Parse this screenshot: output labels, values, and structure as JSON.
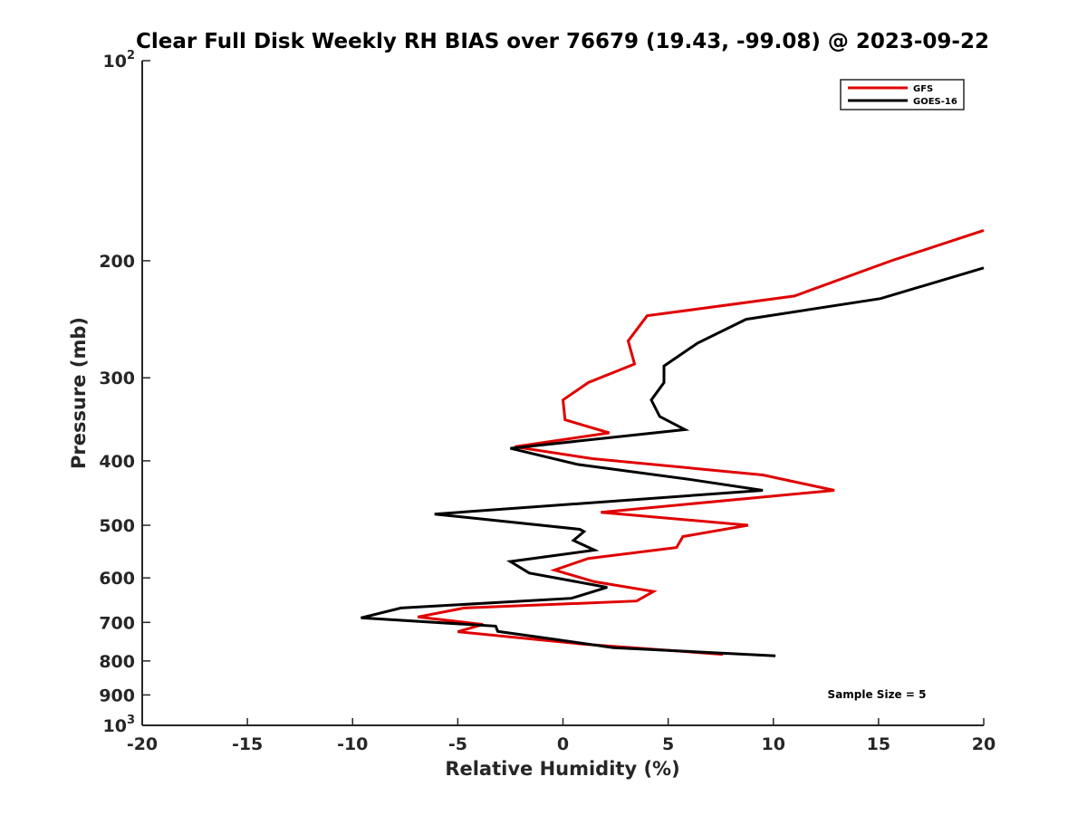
{
  "chart_data": {
    "type": "line",
    "title": "Clear Full Disk Weekly RH BIAS over 76679 (19.43, -99.08) @ 2023-09-22",
    "xlabel": "Relative Humidity (%)",
    "ylabel": "Pressure (mb)",
    "xlim": [
      -20,
      20
    ],
    "ylim": [
      100,
      1000
    ],
    "y_scale": "log",
    "y_reversed": true,
    "x_ticks": [
      {
        "value": -20,
        "label": "-20"
      },
      {
        "value": -15,
        "label": "-15"
      },
      {
        "value": -10,
        "label": "-10"
      },
      {
        "value": -5,
        "label": "-5"
      },
      {
        "value": 0,
        "label": "0"
      },
      {
        "value": 5,
        "label": "5"
      },
      {
        "value": 10,
        "label": "10"
      },
      {
        "value": 15,
        "label": "15"
      },
      {
        "value": 20,
        "label": "20"
      }
    ],
    "y_ticks": [
      {
        "value": 100,
        "base": "10",
        "exp": "2"
      },
      {
        "value": 200,
        "base": "200",
        "exp": ""
      },
      {
        "value": 300,
        "base": "300",
        "exp": ""
      },
      {
        "value": 400,
        "base": "400",
        "exp": ""
      },
      {
        "value": 500,
        "base": "500",
        "exp": ""
      },
      {
        "value": 600,
        "base": "600",
        "exp": ""
      },
      {
        "value": 700,
        "base": "700",
        "exp": ""
      },
      {
        "value": 800,
        "base": "800",
        "exp": ""
      },
      {
        "value": 900,
        "base": "900",
        "exp": ""
      },
      {
        "value": 1000,
        "base": "10",
        "exp": "3"
      }
    ],
    "legend": {
      "placement": "top-right"
    },
    "annotation": "Sample Size = 5",
    "series": [
      {
        "name": "GFS",
        "color": "#e00000",
        "points": [
          {
            "x": 20,
            "p": 180
          },
          {
            "x": 15.6,
            "p": 200
          },
          {
            "x": 11,
            "p": 226
          },
          {
            "x": 4,
            "p": 242
          },
          {
            "x": 3.1,
            "p": 264
          },
          {
            "x": 3.4,
            "p": 286
          },
          {
            "x": 1.2,
            "p": 305
          },
          {
            "x": 0,
            "p": 324
          },
          {
            "x": 0.1,
            "p": 347
          },
          {
            "x": 2.2,
            "p": 363
          },
          {
            "x": -2.3,
            "p": 381
          },
          {
            "x": 1.4,
            "p": 397
          },
          {
            "x": 9.5,
            "p": 420
          },
          {
            "x": 12.9,
            "p": 443
          },
          {
            "x": 1.8,
            "p": 478
          },
          {
            "x": 8.8,
            "p": 500
          },
          {
            "x": 5.7,
            "p": 520
          },
          {
            "x": 5.4,
            "p": 540
          },
          {
            "x": 1.2,
            "p": 561
          },
          {
            "x": -0.4,
            "p": 584
          },
          {
            "x": 1.5,
            "p": 608
          },
          {
            "x": 4.3,
            "p": 629
          },
          {
            "x": 3.5,
            "p": 650
          },
          {
            "x": -4.7,
            "p": 666
          },
          {
            "x": -6.9,
            "p": 687
          },
          {
            "x": -3.8,
            "p": 705
          },
          {
            "x": -5,
            "p": 723
          },
          {
            "x": 1,
            "p": 755
          },
          {
            "x": 7.6,
            "p": 782
          }
        ]
      },
      {
        "name": "GOES-16",
        "color": "#000000",
        "points": [
          {
            "x": 20,
            "p": 205
          },
          {
            "x": 15.1,
            "p": 228
          },
          {
            "x": 8.7,
            "p": 245
          },
          {
            "x": 6.4,
            "p": 266
          },
          {
            "x": 4.8,
            "p": 288
          },
          {
            "x": 4.8,
            "p": 305
          },
          {
            "x": 4.2,
            "p": 324
          },
          {
            "x": 4.6,
            "p": 343
          },
          {
            "x": 5.8,
            "p": 359
          },
          {
            "x": -2.5,
            "p": 383
          },
          {
            "x": 0.7,
            "p": 405
          },
          {
            "x": 6.1,
            "p": 427
          },
          {
            "x": 9.5,
            "p": 443
          },
          {
            "x": -6.1,
            "p": 481
          },
          {
            "x": 0.8,
            "p": 507
          },
          {
            "x": 1.0,
            "p": 511
          },
          {
            "x": 0.5,
            "p": 527
          },
          {
            "x": 1.5,
            "p": 545
          },
          {
            "x": -2.5,
            "p": 567
          },
          {
            "x": -1.6,
            "p": 590
          },
          {
            "x": 2.1,
            "p": 620
          },
          {
            "x": 0.4,
            "p": 644
          },
          {
            "x": -7.7,
            "p": 666
          },
          {
            "x": -9.6,
            "p": 689
          },
          {
            "x": -3.2,
            "p": 709
          },
          {
            "x": -3.1,
            "p": 722
          },
          {
            "x": -0.7,
            "p": 740
          },
          {
            "x": 2.4,
            "p": 764
          },
          {
            "x": 10.1,
            "p": 786
          }
        ]
      }
    ]
  }
}
